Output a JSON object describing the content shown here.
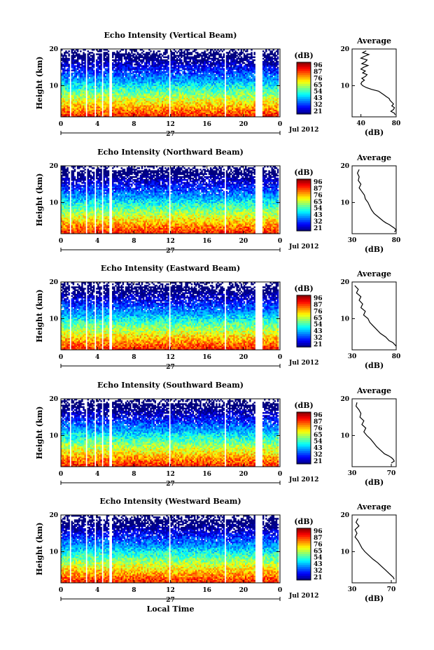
{
  "chart_data": [
    {
      "type": "heatmap",
      "title": "Echo Intensity (Vertical Beam)",
      "ylabel": "Height (km)",
      "xlim": [
        0,
        24
      ],
      "ylim": [
        1.5,
        20
      ],
      "x_ticks": [
        "0",
        "4",
        "8",
        "12",
        "16",
        "20",
        "0"
      ],
      "y_ticks": [
        "20",
        "10"
      ],
      "date_center": "27",
      "date_right": "Jul 2012",
      "colorbar": {
        "label": "(dB)",
        "ticks": [
          "96",
          "87",
          "76",
          "65",
          "54",
          "43",
          "32",
          "21"
        ]
      },
      "profile": {
        "title": "Average",
        "xlabel": "(dB)",
        "xlim": [
          30,
          80
        ],
        "x_ticks": [
          "40",
          "80"
        ],
        "y_ticks": [
          "20",
          "10"
        ],
        "points": [
          [
            46,
            19.5
          ],
          [
            42,
            19
          ],
          [
            49,
            18.5
          ],
          [
            44,
            18
          ],
          [
            40,
            17.5
          ],
          [
            47,
            17
          ],
          [
            45,
            16.5
          ],
          [
            41,
            16
          ],
          [
            48,
            15.5
          ],
          [
            43,
            15
          ],
          [
            40,
            14.5
          ],
          [
            45,
            14
          ],
          [
            42,
            13.5
          ],
          [
            47,
            13
          ],
          [
            45,
            12.5
          ],
          [
            41,
            12
          ],
          [
            44,
            11.5
          ],
          [
            41,
            11
          ],
          [
            40,
            10.5
          ],
          [
            42,
            10
          ],
          [
            46,
            9.5
          ],
          [
            52,
            9
          ],
          [
            60,
            8.5
          ],
          [
            63,
            8
          ],
          [
            66,
            7.5
          ],
          [
            69,
            7
          ],
          [
            72,
            6.5
          ],
          [
            73,
            6
          ],
          [
            75,
            5.5
          ],
          [
            77,
            5
          ],
          [
            75,
            4.5
          ],
          [
            78,
            4
          ],
          [
            77,
            3.5
          ],
          [
            74,
            3
          ],
          [
            78,
            2.5
          ],
          [
            79,
            2
          ]
        ]
      }
    },
    {
      "type": "heatmap",
      "title": "Echo Intensity (Northward Beam)",
      "ylabel": "Height (km)",
      "xlim": [
        0,
        24
      ],
      "ylim": [
        1.5,
        20
      ],
      "x_ticks": [
        "0",
        "4",
        "8",
        "12",
        "16",
        "20",
        "0"
      ],
      "y_ticks": [
        "20",
        "10"
      ],
      "date_center": "27",
      "date_right": "Jul 2012",
      "colorbar": {
        "label": "(dB)",
        "ticks": [
          "96",
          "87",
          "76",
          "65",
          "54",
          "43",
          "32",
          "21"
        ]
      },
      "profile": {
        "title": "Average",
        "xlabel": "(dB)",
        "xlim": [
          30,
          80
        ],
        "x_ticks": [
          "30",
          "80"
        ],
        "y_ticks": [
          "20",
          "10"
        ],
        "points": [
          [
            38,
            19
          ],
          [
            36,
            18
          ],
          [
            38,
            17
          ],
          [
            37,
            16
          ],
          [
            40,
            15
          ],
          [
            38,
            14
          ],
          [
            41,
            13
          ],
          [
            44,
            12
          ],
          [
            45,
            11
          ],
          [
            48,
            10
          ],
          [
            50,
            9
          ],
          [
            52,
            8
          ],
          [
            55,
            7
          ],
          [
            60,
            6
          ],
          [
            65,
            5
          ],
          [
            68,
            4.5
          ],
          [
            72,
            4
          ],
          [
            75,
            3.5
          ],
          [
            78,
            3
          ],
          [
            80,
            2.5
          ],
          [
            78,
            2
          ]
        ]
      }
    },
    {
      "type": "heatmap",
      "title": "Echo Intensity (Eastward Beam)",
      "ylabel": "Height (km)",
      "xlim": [
        0,
        24
      ],
      "ylim": [
        1.5,
        20
      ],
      "x_ticks": [
        "0",
        "4",
        "8",
        "12",
        "16",
        "20",
        "0"
      ],
      "y_ticks": [
        "20",
        "10"
      ],
      "date_center": "27",
      "date_right": "Jul 2012",
      "colorbar": {
        "label": "(dB)",
        "ticks": [
          "96",
          "87",
          "76",
          "65",
          "54",
          "43",
          "32",
          "21"
        ]
      },
      "profile": {
        "title": "Average",
        "xlabel": "(dB)",
        "xlim": [
          30,
          80
        ],
        "x_ticks": [
          "30",
          "80"
        ],
        "y_ticks": [
          "20",
          "10"
        ],
        "points": [
          [
            33,
            19
          ],
          [
            37,
            18
          ],
          [
            35,
            17
          ],
          [
            40,
            16
          ],
          [
            38,
            15
          ],
          [
            42,
            14
          ],
          [
            40,
            13
          ],
          [
            45,
            12
          ],
          [
            43,
            11
          ],
          [
            48,
            10
          ],
          [
            50,
            9
          ],
          [
            54,
            8
          ],
          [
            58,
            7
          ],
          [
            62,
            6
          ],
          [
            68,
            5
          ],
          [
            72,
            4
          ],
          [
            76,
            3.5
          ],
          [
            78,
            3
          ],
          [
            80,
            2.5
          ]
        ]
      }
    },
    {
      "type": "heatmap",
      "title": "Echo Intensity (Southward Beam)",
      "ylabel": "Height (km)",
      "xlim": [
        0,
        24
      ],
      "ylim": [
        1.5,
        20
      ],
      "x_ticks": [
        "0",
        "4",
        "8",
        "12",
        "16",
        "20",
        "0"
      ],
      "y_ticks": [
        "20",
        "10"
      ],
      "date_center": "27",
      "date_right": "Jul 2012",
      "colorbar": {
        "label": "(dB)",
        "ticks": [
          "96",
          "87",
          "76",
          "65",
          "54",
          "43",
          "32",
          "21"
        ]
      },
      "profile": {
        "title": "Average",
        "xlabel": "(dB)",
        "xlim": [
          30,
          75
        ],
        "x_ticks": [
          "30",
          "70"
        ],
        "y_ticks": [
          "20",
          "10"
        ],
        "points": [
          [
            35,
            19
          ],
          [
            34,
            18
          ],
          [
            37,
            17
          ],
          [
            39,
            16
          ],
          [
            38,
            15
          ],
          [
            42,
            14
          ],
          [
            40,
            13
          ],
          [
            44,
            12
          ],
          [
            42,
            11
          ],
          [
            45,
            10
          ],
          [
            49,
            9
          ],
          [
            52,
            8
          ],
          [
            55,
            7
          ],
          [
            59,
            6
          ],
          [
            63,
            5
          ],
          [
            67,
            4.5
          ],
          [
            70,
            4
          ],
          [
            72,
            3.5
          ],
          [
            73,
            3
          ],
          [
            70,
            2.5
          ]
        ]
      }
    },
    {
      "type": "heatmap",
      "title": "Echo Intensity (Westward Beam)",
      "ylabel": "Height (km)",
      "xlabel": "Local Time",
      "xlim": [
        0,
        24
      ],
      "ylim": [
        1.5,
        20
      ],
      "x_ticks": [
        "0",
        "4",
        "8",
        "12",
        "16",
        "20",
        "0"
      ],
      "y_ticks": [
        "20",
        "10"
      ],
      "date_center": "27",
      "date_right": "Jul 2012",
      "colorbar": {
        "label": "(dB)",
        "ticks": [
          "96",
          "87",
          "76",
          "65",
          "54",
          "43",
          "32",
          "21"
        ]
      },
      "profile": {
        "title": "Average",
        "xlabel": "(dB)",
        "xlim": [
          30,
          75
        ],
        "x_ticks": [
          "30",
          "70"
        ],
        "y_ticks": [
          "20",
          "10"
        ],
        "points": [
          [
            36,
            19
          ],
          [
            34,
            18
          ],
          [
            37,
            17
          ],
          [
            33,
            16
          ],
          [
            35,
            15
          ],
          [
            33,
            14
          ],
          [
            36,
            13
          ],
          [
            38,
            12
          ],
          [
            40,
            11
          ],
          [
            43,
            10
          ],
          [
            47,
            9
          ],
          [
            51,
            8
          ],
          [
            56,
            7
          ],
          [
            60,
            6
          ],
          [
            64,
            5
          ],
          [
            68,
            4
          ],
          [
            70,
            3.5
          ],
          [
            72,
            3
          ],
          [
            73,
            2.5
          ]
        ]
      }
    }
  ]
}
